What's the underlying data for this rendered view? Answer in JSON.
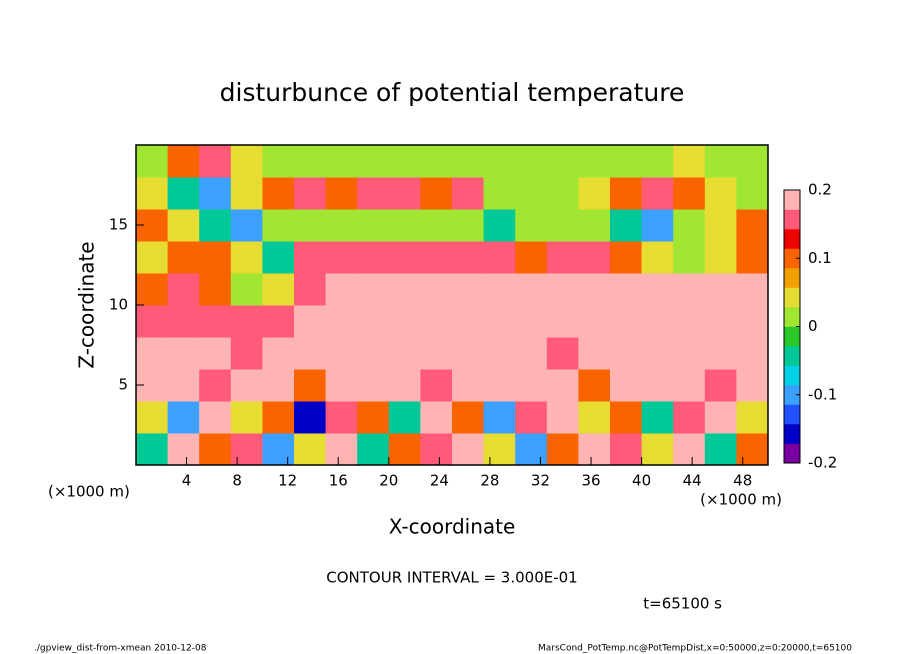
{
  "chart_data": {
    "type": "heatmap",
    "title": "disturbunce of potential temperature",
    "xlabel": "X-coordinate",
    "ylabel": "Z-coordinate",
    "xunit": "(×1000 m)",
    "yunit": "(×1000 m)",
    "annotation": "CONTOUR INTERVAL = 3.000E-01",
    "time_label": "t=65100 s",
    "footer_left": "./gpview_dist-from-xmean  2010-12-08",
    "footer_right": "MarsCond_PotTemp.nc@PotTempDist,x=0:50000,z=0:20000,t=65100",
    "xlim": [
      0,
      50
    ],
    "ylim": [
      0,
      20
    ],
    "xticks": [
      4,
      8,
      12,
      16,
      20,
      24,
      28,
      32,
      36,
      40,
      44,
      48
    ],
    "yticks": [
      5,
      10,
      15
    ],
    "x": [
      1.25,
      3.75,
      6.25,
      8.75,
      11.25,
      13.75,
      16.25,
      18.75,
      21.25,
      23.75,
      26.25,
      28.75,
      31.25,
      33.75,
      36.25,
      38.75,
      41.25,
      43.75,
      46.25,
      48.75
    ],
    "y": [
      1,
      3,
      5,
      7,
      9,
      11,
      13,
      15,
      17,
      19
    ],
    "z": [
      [
        -0.05,
        0.2,
        0.1,
        0.15,
        -0.1,
        0.05,
        0.2,
        -0.05,
        0.1,
        0.15,
        0.2,
        0.05,
        -0.1,
        0.1,
        0.2,
        0.15,
        0.05,
        0.2,
        -0.05,
        0.1
      ],
      [
        0.05,
        -0.1,
        0.2,
        0.05,
        0.1,
        -0.15,
        0.15,
        0.1,
        -0.05,
        0.2,
        0.1,
        -0.1,
        0.15,
        0.2,
        0.05,
        0.1,
        -0.05,
        0.15,
        0.2,
        0.05
      ],
      [
        0.2,
        0.2,
        0.15,
        0.2,
        0.2,
        0.1,
        0.2,
        0.2,
        0.2,
        0.15,
        0.2,
        0.2,
        0.2,
        0.2,
        0.1,
        0.2,
        0.2,
        0.2,
        0.15,
        0.2
      ],
      [
        0.2,
        0.2,
        0.2,
        0.15,
        0.2,
        0.2,
        0.2,
        0.2,
        0.2,
        0.2,
        0.2,
        0.2,
        0.2,
        0.15,
        0.2,
        0.2,
        0.2,
        0.2,
        0.2,
        0.2
      ],
      [
        0.15,
        0.15,
        0.15,
        0.15,
        0.15,
        0.2,
        0.2,
        0.2,
        0.2,
        0.2,
        0.2,
        0.2,
        0.2,
        0.2,
        0.2,
        0.2,
        0.2,
        0.2,
        0.2,
        0.2
      ],
      [
        0.1,
        0.15,
        0.1,
        0.0,
        0.05,
        0.15,
        0.2,
        0.2,
        0.2,
        0.2,
        0.2,
        0.2,
        0.2,
        0.2,
        0.2,
        0.2,
        0.2,
        0.2,
        0.2,
        0.2
      ],
      [
        0.05,
        0.1,
        0.1,
        0.05,
        -0.05,
        0.15,
        0.15,
        0.15,
        0.15,
        0.15,
        0.15,
        0.15,
        0.1,
        0.15,
        0.15,
        0.1,
        0.05,
        0.0,
        0.05,
        0.1
      ],
      [
        0.1,
        0.05,
        -0.05,
        -0.1,
        0.0,
        0.0,
        0.0,
        0.0,
        0.0,
        0.0,
        0.0,
        -0.05,
        0.0,
        0.0,
        0.0,
        -0.05,
        -0.1,
        0.0,
        0.05,
        0.1
      ],
      [
        0.05,
        -0.05,
        -0.1,
        0.05,
        0.1,
        0.15,
        0.1,
        0.15,
        0.15,
        0.1,
        0.15,
        0.0,
        0.0,
        0.0,
        0.05,
        0.1,
        0.15,
        0.1,
        0.05,
        0.0
      ],
      [
        0.0,
        0.1,
        0.15,
        0.05,
        0.0,
        0.0,
        0.0,
        0.0,
        0.0,
        0.0,
        0.0,
        0.0,
        0.0,
        0.0,
        0.0,
        0.0,
        0.0,
        0.05,
        0.0,
        0.0
      ]
    ],
    "zlim": [
      -0.2,
      0.2
    ],
    "zticks": [
      -0.2,
      -0.1,
      0,
      0.1,
      0.2
    ],
    "colors": [
      "#7800a0",
      "#0000c8",
      "#1e50ff",
      "#3ca0ff",
      "#00d2e6",
      "#00c896",
      "#28c828",
      "#a0e632",
      "#e6dc32",
      "#f0a000",
      "#fa6400",
      "#f00000",
      "#ff5a78",
      "#ffb4b4"
    ]
  }
}
